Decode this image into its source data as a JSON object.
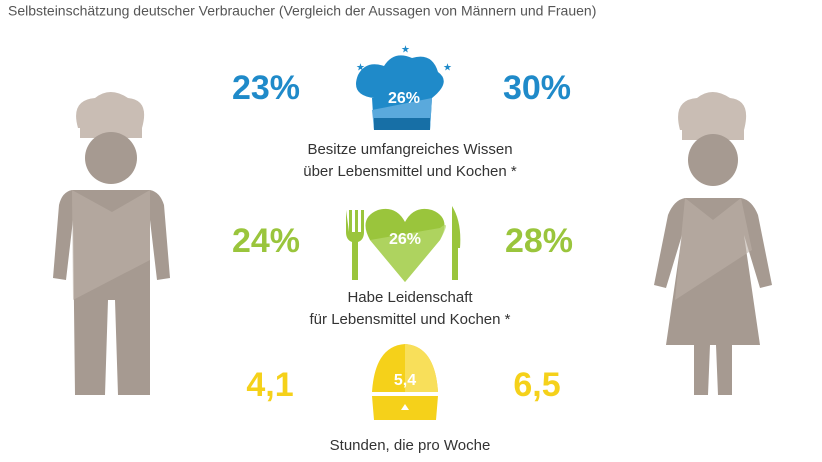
{
  "header": {
    "title": "Selbsteinschätzung deutscher Verbraucher (Vergleich der Aussagen von Männern und Frauen)"
  },
  "rows": [
    {
      "men": "23%",
      "total": "26%",
      "women": "30%",
      "label": [
        "Besitze umfangreiches Wissen",
        "über Lebensmittel und Kochen *"
      ]
    },
    {
      "men": "24%",
      "total": "26%",
      "women": "28%",
      "label": [
        "Habe Leidenschaft",
        "für Lebensmittel und Kochen *"
      ]
    },
    {
      "men": "4,1",
      "total": "5,4",
      "women": "6,5",
      "label": [
        "Stunden, die pro Woche"
      ]
    }
  ]
}
